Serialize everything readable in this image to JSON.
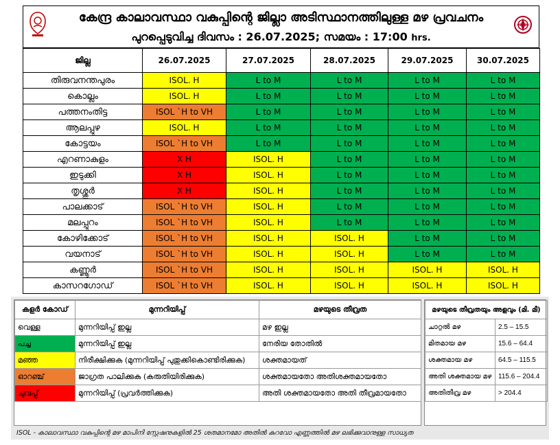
{
  "header": {
    "title": "കേന്ദ്ര കാലാവസ്ഥാ വകുപ്പിന്റെ ജില്ലാ അടിസ്ഥാനത്തിലുള്ള മഴ പ്രവചനം",
    "subtitle": "പുറപ്പെടുവിച്ച ദിവസം : 26.07.2025; സമയം : 17:00",
    "subtitle_unit": "hrs."
  },
  "table": {
    "district_header": "ജില്ല",
    "dates": [
      "26.07.2025",
      "27.07.2025",
      "28.07.2025",
      "29.07.2025",
      "30.07.2025"
    ],
    "rows": [
      {
        "district": "തിരുവനന്തപുരം",
        "cells": [
          {
            "text": "ISOL. H",
            "color": "yellow"
          },
          {
            "text": "L to M",
            "color": "green"
          },
          {
            "text": "L to M",
            "color": "green"
          },
          {
            "text": "L to M",
            "color": "green"
          },
          {
            "text": "L to M",
            "color": "green"
          }
        ]
      },
      {
        "district": "കൊല്ലം",
        "cells": [
          {
            "text": "ISOL. H",
            "color": "yellow"
          },
          {
            "text": "L to M",
            "color": "green"
          },
          {
            "text": "L to M",
            "color": "green"
          },
          {
            "text": "L to M",
            "color": "green"
          },
          {
            "text": "L to M",
            "color": "green"
          }
        ]
      },
      {
        "district": "പത്തനംതിട്ട",
        "cells": [
          {
            "text": "ISOL `H to VH",
            "color": "orange"
          },
          {
            "text": "L to M",
            "color": "green"
          },
          {
            "text": "L to M",
            "color": "green"
          },
          {
            "text": "L to M",
            "color": "green"
          },
          {
            "text": "L to M",
            "color": "green"
          }
        ]
      },
      {
        "district": "ആലപ്പുഴ",
        "cells": [
          {
            "text": "ISOL. H",
            "color": "yellow"
          },
          {
            "text": "L to M",
            "color": "green"
          },
          {
            "text": "L to M",
            "color": "green"
          },
          {
            "text": "L to M",
            "color": "green"
          },
          {
            "text": "L to M",
            "color": "green"
          }
        ]
      },
      {
        "district": "കോട്ടയം",
        "cells": [
          {
            "text": "ISOL `H to VH",
            "color": "orange"
          },
          {
            "text": "L to M",
            "color": "green"
          },
          {
            "text": "L to M",
            "color": "green"
          },
          {
            "text": "L to M",
            "color": "green"
          },
          {
            "text": "L to M",
            "color": "green"
          }
        ]
      },
      {
        "district": "എറണാകുളം",
        "cells": [
          {
            "text": "X H",
            "color": "red"
          },
          {
            "text": "ISOL. H",
            "color": "yellow"
          },
          {
            "text": "L to M",
            "color": "green"
          },
          {
            "text": "L to M",
            "color": "green"
          },
          {
            "text": "L to M",
            "color": "green"
          }
        ]
      },
      {
        "district": "ഇടുക്കി",
        "cells": [
          {
            "text": "X H",
            "color": "red"
          },
          {
            "text": "ISOL. H",
            "color": "yellow"
          },
          {
            "text": "L to M",
            "color": "green"
          },
          {
            "text": "L to M",
            "color": "green"
          },
          {
            "text": "L to M",
            "color": "green"
          }
        ]
      },
      {
        "district": "തൃശ്ശൂർ",
        "cells": [
          {
            "text": "X H",
            "color": "red"
          },
          {
            "text": "ISOL. H",
            "color": "yellow"
          },
          {
            "text": "L to M",
            "color": "green"
          },
          {
            "text": "L to M",
            "color": "green"
          },
          {
            "text": "L to M",
            "color": "green"
          }
        ]
      },
      {
        "district": "പാലക്കാട്",
        "cells": [
          {
            "text": "ISOL `H to VH",
            "color": "orange"
          },
          {
            "text": "ISOL. H",
            "color": "yellow"
          },
          {
            "text": "L to M",
            "color": "green"
          },
          {
            "text": "L to M",
            "color": "green"
          },
          {
            "text": "L to M",
            "color": "green"
          }
        ]
      },
      {
        "district": "മലപ്പുറം",
        "cells": [
          {
            "text": "ISOL `H to VH",
            "color": "orange"
          },
          {
            "text": "ISOL. H",
            "color": "yellow"
          },
          {
            "text": "L to M",
            "color": "green"
          },
          {
            "text": "L to M",
            "color": "green"
          },
          {
            "text": "L to M",
            "color": "green"
          }
        ]
      },
      {
        "district": "കോഴിക്കോട്",
        "cells": [
          {
            "text": "ISOL `H to VH",
            "color": "orange"
          },
          {
            "text": "ISOL. H",
            "color": "yellow"
          },
          {
            "text": "ISOL. H",
            "color": "yellow"
          },
          {
            "text": "L to M",
            "color": "green"
          },
          {
            "text": "L to M",
            "color": "green"
          }
        ]
      },
      {
        "district": "വയനാട്",
        "cells": [
          {
            "text": "ISOL `H to VH",
            "color": "orange"
          },
          {
            "text": "ISOL. H",
            "color": "yellow"
          },
          {
            "text": "ISOL. H",
            "color": "yellow"
          },
          {
            "text": "L to M",
            "color": "green"
          },
          {
            "text": "L to M",
            "color": "green"
          }
        ]
      },
      {
        "district": "കണ്ണൂർ",
        "cells": [
          {
            "text": "ISOL `H to VH",
            "color": "orange"
          },
          {
            "text": "ISOL. H",
            "color": "yellow"
          },
          {
            "text": "ISOL. H",
            "color": "yellow"
          },
          {
            "text": "ISOL. H",
            "color": "yellow"
          },
          {
            "text": "ISOL. H",
            "color": "yellow"
          }
        ]
      },
      {
        "district": "കാസറഗോഡ്",
        "cells": [
          {
            "text": "ISOL `H to VH",
            "color": "orange"
          },
          {
            "text": "ISOL. H",
            "color": "yellow"
          },
          {
            "text": "ISOL. H",
            "color": "yellow"
          },
          {
            "text": "ISOL. H",
            "color": "yellow"
          },
          {
            "text": "ISOL. H",
            "color": "yellow"
          }
        ]
      }
    ]
  },
  "colors": {
    "yellow": "#ffff00",
    "green": "#00b050",
    "orange": "#ed7d31",
    "red": "#ff0000"
  },
  "legend": {
    "headers": [
      "കളർ കോഡ്",
      "മുന്നറിയിപ്പ്",
      "മഴയുടെ തീവ്രത"
    ],
    "rows": [
      {
        "color_name": "വെള്ള",
        "swatch": "#ffffff",
        "warning": "മുന്നറിയിപ്പ് ഇല്ല",
        "intensity": "മഴ ഇല്ല"
      },
      {
        "color_name": "പച്ച",
        "swatch": "#00b050",
        "warning": "മുന്നറിയിപ്പ് ഇല്ല",
        "intensity": "നേരിയ തോതിൽ"
      },
      {
        "color_name": "മഞ്ഞ",
        "swatch": "#ffff00",
        "warning": "നിരീക്ഷിക്കുക (മുന്നറിയിപ്പ് പുതുക്കികൊണ്ടിരിക്കുക)",
        "intensity": "ശക്തമായത്"
      },
      {
        "color_name": "ഓറഞ്ച്",
        "swatch": "#ed7d31",
        "warning": "ജാഗ്രത പാലിക്കുക (കരുതിയിരിക്കുക)",
        "intensity": "ശക്തമായതോ അതിശക്തമായതോ"
      },
      {
        "color_name": "ചുവപ്പ്",
        "swatch": "#ff0000",
        "warning": "മുന്നറിയിപ്പ് (പ്രവർത്തിക്കുക)",
        "intensity": "അതി ശക്തമായതോ അതി തീവ്രമായതോ"
      }
    ],
    "amount_header": "മഴയുടെ തീവ്രതയും അളവും (മി. മീ)",
    "amounts": [
      {
        "label": "ചാറ്റൽ മഴ",
        "range": "2.5 – 15.5"
      },
      {
        "label": "മിതമായ മഴ",
        "range": "15.6 – 64.4"
      },
      {
        "label": "ശക്തമായ മഴ",
        "range": "64.5 – 115.5"
      },
      {
        "label": "അതി ശക്തമായ മഴ",
        "range": "115.6 – 204.4"
      },
      {
        "label": "അതിതീവ്ര മഴ",
        "range": "> 204.4"
      }
    ],
    "note": "ISOL - കാലാവസ്ഥാ വകുപ്പിന്റെ മഴ മാപിനി സ്റ്റേഷനുകളിൽ 25 ശതമാനമോ അതിൽ കുറവോ എണ്ണത്തിൽ മഴ ലഭിക്കുവാനുള്ള സാധ്യത"
  }
}
